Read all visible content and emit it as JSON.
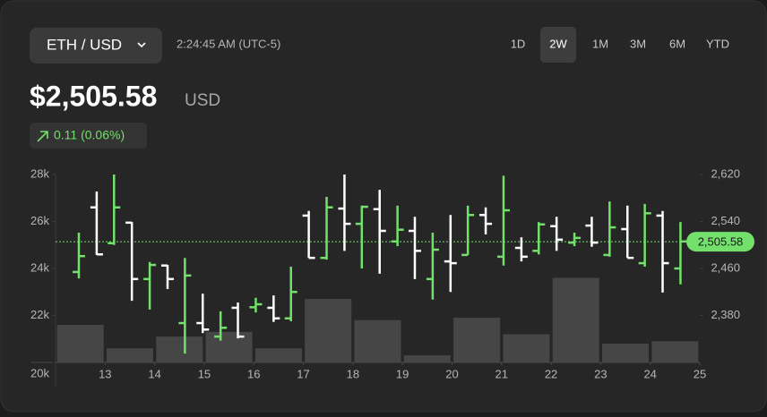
{
  "header": {
    "pair": "ETH / USD",
    "time": "2:24:45 AM (UTC-5)",
    "ranges": [
      "1D",
      "2W",
      "1M",
      "3M",
      "6M",
      "YTD"
    ],
    "selected_range": 1,
    "price": "$2,505.58",
    "currency": "USD",
    "change": "0.11 (0.06%)"
  },
  "chart_data": {
    "type": "ohlc",
    "x": [
      12.47,
      12.83,
      13.18,
      13.54,
      13.9,
      14.26,
      14.61,
      14.97,
      15.33,
      15.68,
      16.04,
      16.4,
      16.75,
      17.11,
      17.47,
      17.83,
      18.18,
      18.54,
      18.9,
      19.25,
      19.61,
      19.97,
      20.32,
      20.68,
      21.04,
      21.4,
      21.75,
      22.11,
      22.47,
      22.82,
      23.18,
      23.54,
      23.89,
      24.25,
      24.61
    ],
    "open": [
      2454,
      2564,
      2503,
      2538,
      2442,
      2465,
      2367,
      2367,
      2344,
      2393,
      2394,
      2393,
      2375,
      2550,
      2478,
      2562,
      2536,
      2561,
      2506,
      2524,
      2442,
      2472,
      2483,
      2551,
      2480,
      2495,
      2490,
      2532,
      2504,
      2533,
      2483,
      2527,
      2469,
      2550,
      2460
    ],
    "high": [
      2521,
      2591,
      2620,
      2539,
      2471,
      2466,
      2478,
      2417,
      2387,
      2402,
      2410,
      2414,
      2463,
      2558,
      2582,
      2620,
      2567,
      2594,
      2567,
      2548,
      2521,
      2551,
      2567,
      2564,
      2618,
      2513,
      2539,
      2548,
      2521,
      2548,
      2574,
      2567,
      2570,
      2558,
      2539
    ],
    "low": [
      2443,
      2483,
      2500,
      2405,
      2390,
      2425,
      2315,
      2350,
      2337,
      2341,
      2385,
      2369,
      2370,
      2478,
      2475,
      2490,
      2460,
      2451,
      2498,
      2442,
      2407,
      2420,
      2483,
      2518,
      2465,
      2472,
      2484,
      2490,
      2498,
      2497,
      2480,
      2478,
      2463,
      2419,
      2433
    ],
    "close": [
      2481,
      2484,
      2564,
      2442,
      2466,
      2442,
      2448,
      2356,
      2359,
      2344,
      2399,
      2375,
      2420,
      2478,
      2564,
      2536,
      2565,
      2524,
      2526,
      2490,
      2492,
      2469,
      2551,
      2536,
      2559,
      2480,
      2535,
      2509,
      2512,
      2504,
      2530,
      2478,
      2554,
      2469,
      2506
    ],
    "up_color": "#72e06a",
    "down_color": "#ffffff",
    "ylim": [
      2300,
      2620
    ],
    "yticks": [
      {
        "value": 2620,
        "label": "2,620"
      },
      {
        "value": 2540,
        "label": "2,540"
      },
      {
        "value": 2460,
        "label": "2,460"
      },
      {
        "value": 2380,
        "label": "2,380"
      }
    ],
    "xlim": [
      12,
      25
    ],
    "xticks": [
      13,
      14,
      15,
      16,
      17,
      18,
      19,
      20,
      21,
      22,
      23,
      24,
      25
    ],
    "volume": {
      "type": "bar",
      "axis": "y2",
      "color": "#464646",
      "x": [
        12.5,
        13.5,
        14.5,
        15.5,
        16.5,
        17.5,
        18.5,
        19.5,
        20.5,
        21.5,
        22.5,
        23.5,
        24.5
      ],
      "values": [
        21600,
        20600,
        21100,
        21300,
        20600,
        22700,
        21800,
        20300,
        21900,
        21200,
        23600,
        20800,
        20900
      ]
    },
    "y2lim": [
      20000,
      28000
    ],
    "y2ticks": [
      {
        "value": 28000,
        "label": "28k"
      },
      {
        "value": 26000,
        "label": "26k"
      },
      {
        "value": 24000,
        "label": "24k"
      },
      {
        "value": 22000,
        "label": "22k"
      },
      {
        "value": 20000,
        "label": "20k"
      }
    ],
    "last_price": {
      "value": 2505.58,
      "label": "2,505.58"
    }
  }
}
